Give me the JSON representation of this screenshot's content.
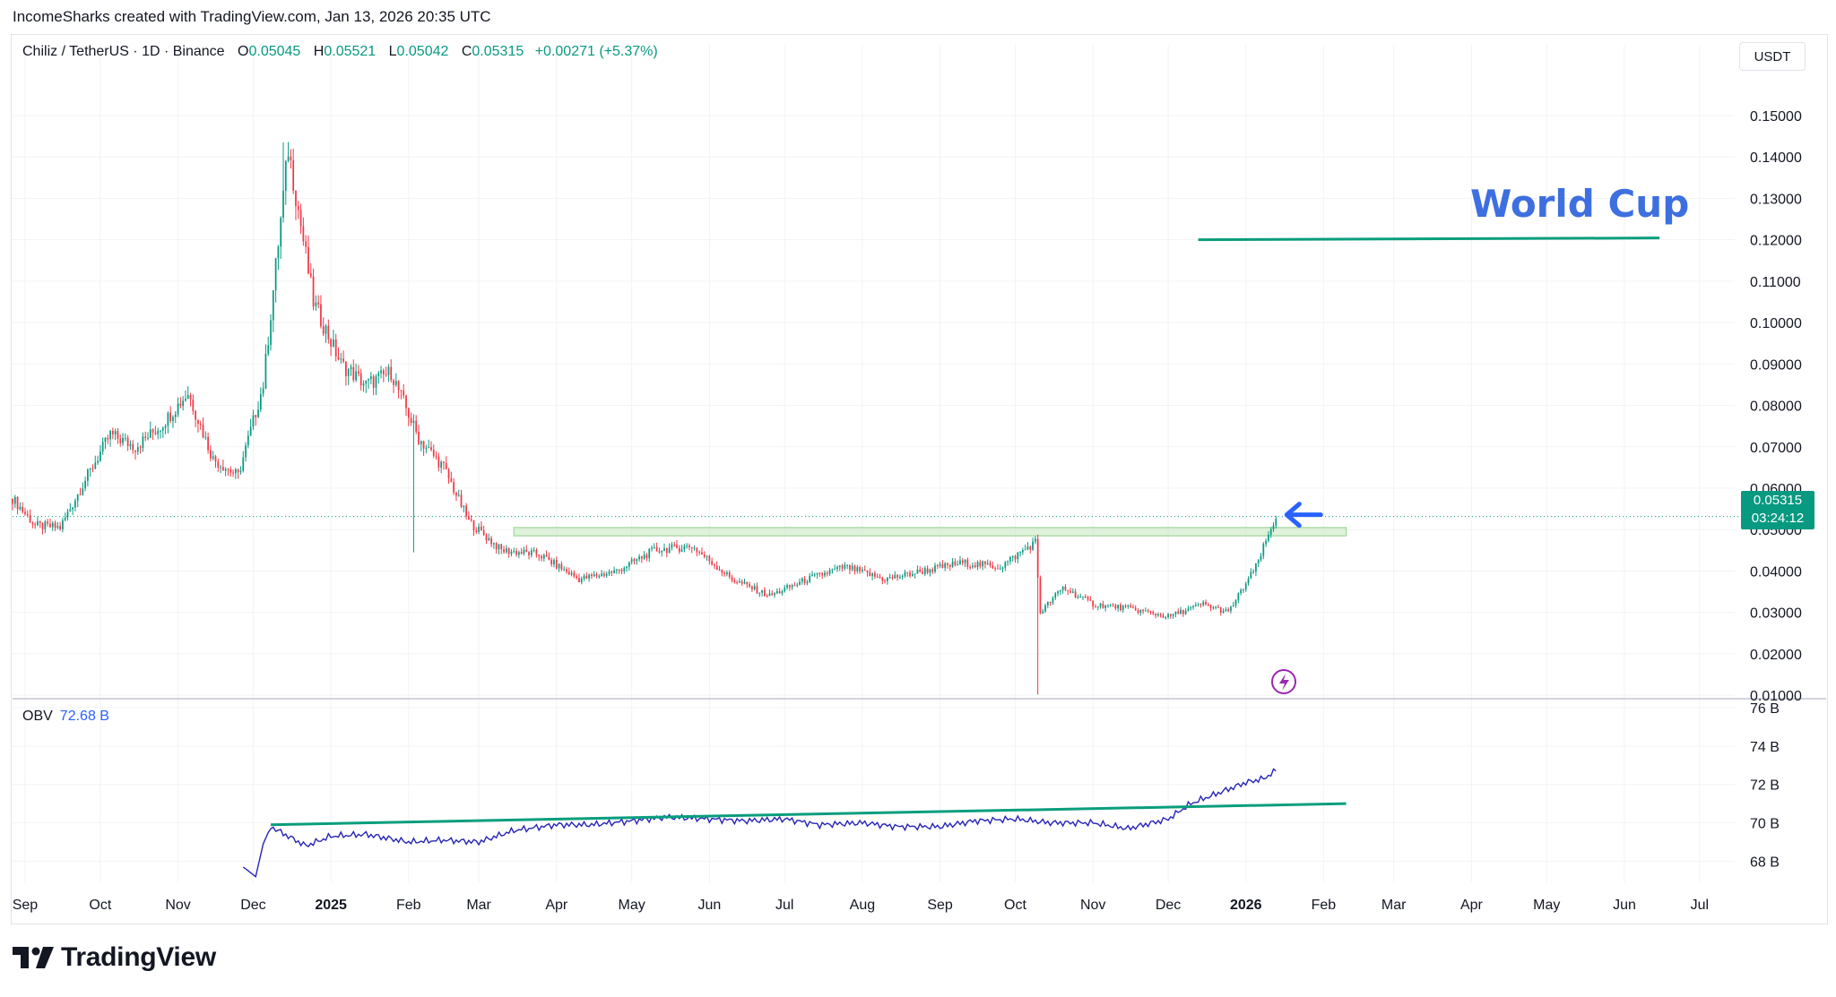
{
  "header": {
    "credit": "IncomeSharks created with TradingView.com, Jan 13, 2026 20:35 UTC"
  },
  "legend": {
    "symbol": "Chiliz / TetherUS · 1D · Binance",
    "open_label": "O",
    "open": "0.05045",
    "high_label": "H",
    "high": "0.05521",
    "low_label": "L",
    "low": "0.05042",
    "close_label": "C",
    "close": "0.05315",
    "change": "+0.00271 (+5.37%)"
  },
  "currency": "USDT",
  "price_tag": {
    "price": "0.05315",
    "countdown": "03:24:12"
  },
  "annotation": {
    "world_cup": "World Cup"
  },
  "obv_legend": {
    "label": "OBV",
    "value": "72.68 B"
  },
  "footer": {
    "brand": "TradingView"
  },
  "colors": {
    "up": "#089981",
    "down": "#f23645",
    "obv_line": "#2724b5",
    "trend_line": "#099e7d",
    "zone": "#b9e3b0",
    "arrow": "#2962ff",
    "grid": "#f2f3f5"
  },
  "chart_data": [
    {
      "type": "candlestick",
      "title": "",
      "y_axis_ticks": [
        "0.01000",
        "0.02000",
        "0.03000",
        "0.04000",
        "0.05000",
        "0.06000",
        "0.07000",
        "0.08000",
        "0.09000",
        "0.10000",
        "0.11000",
        "0.12000",
        "0.13000",
        "0.14000",
        "0.15000"
      ],
      "ylim": [
        0.007,
        0.158
      ],
      "x_axis_labels": [
        "Sep",
        "Oct",
        "Nov",
        "Dec",
        "2025",
        "Feb",
        "Mar",
        "Apr",
        "May",
        "Jun",
        "Jul",
        "Aug",
        "Sep",
        "Oct",
        "Nov",
        "Dec",
        "2026",
        "Feb",
        "Mar",
        "Apr",
        "May",
        "Jun",
        "Jul"
      ],
      "x_range": [
        "2024-08-27",
        "2026-07-15"
      ],
      "grid": true,
      "current_price": 0.05315,
      "series": [
        {
          "x": [
            "2024-08-27",
            "2024-09-05",
            "2024-09-15",
            "2024-09-25",
            "2024-10-05",
            "2024-10-15",
            "2024-10-25",
            "2024-11-05",
            "2024-11-15",
            "2024-11-25",
            "2024-12-05",
            "2024-12-15",
            "2024-12-25",
            "2025-01-05",
            "2025-01-15",
            "2025-01-25",
            "2025-02-05",
            "2025-02-15",
            "2025-02-25",
            "2025-03-10",
            "2025-03-25",
            "2025-04-10",
            "2025-04-25",
            "2025-05-10",
            "2025-05-25",
            "2025-06-10",
            "2025-06-25",
            "2025-07-10",
            "2025-07-25",
            "2025-08-10",
            "2025-08-25",
            "2025-09-10",
            "2025-09-25",
            "2025-10-09",
            "2025-10-11",
            "2025-10-20",
            "2025-11-01",
            "2025-11-15",
            "2025-12-01",
            "2025-12-15",
            "2025-12-25",
            "2026-01-05",
            "2026-01-13"
          ],
          "close": [
            0.0575,
            0.051,
            0.0505,
            0.062,
            0.073,
            0.07,
            0.075,
            0.083,
            0.067,
            0.063,
            0.085,
            0.142,
            0.105,
            0.09,
            0.085,
            0.088,
            0.072,
            0.065,
            0.052,
            0.045,
            0.044,
            0.038,
            0.04,
            0.045,
            0.046,
            0.038,
            0.034,
            0.038,
            0.041,
            0.038,
            0.04,
            0.042,
            0.041,
            0.047,
            0.03,
            0.036,
            0.032,
            0.031,
            0.029,
            0.032,
            0.03,
            0.041,
            0.05315
          ]
        }
      ],
      "levels": [
        {
          "label": "World Cup",
          "value": 0.12,
          "from": "2025-12-13",
          "to": "2026-06-15"
        }
      ],
      "zones": [
        {
          "from": "2025-03-15",
          "to": "2026-02-10",
          "low": 0.0485,
          "high": 0.0505
        }
      ]
    },
    {
      "type": "line",
      "title": "",
      "name": "OBV",
      "y_axis_ticks": [
        "68 B",
        "70 B",
        "72 B",
        "74 B",
        "76 B"
      ],
      "ylim": [
        66.9,
        76.0
      ],
      "series": [
        {
          "x": [
            "2024-11-27",
            "2024-12-02",
            "2024-12-05",
            "2024-12-08",
            "2024-12-15",
            "2024-12-22",
            "2025-01-01",
            "2025-01-15",
            "2025-02-01",
            "2025-02-15",
            "2025-03-01",
            "2025-03-15",
            "2025-04-01",
            "2025-04-15",
            "2025-05-01",
            "2025-05-15",
            "2025-06-01",
            "2025-06-15",
            "2025-07-01",
            "2025-07-15",
            "2025-08-01",
            "2025-08-15",
            "2025-09-01",
            "2025-09-15",
            "2025-10-01",
            "2025-10-15",
            "2025-11-01",
            "2025-11-15",
            "2025-12-01",
            "2025-12-10",
            "2025-12-20",
            "2026-01-01",
            "2026-01-08",
            "2026-01-13"
          ],
          "values": [
            67.7,
            67.2,
            68.9,
            69.8,
            69.3,
            68.8,
            69.3,
            69.4,
            69.0,
            69.1,
            69.0,
            69.6,
            69.9,
            69.9,
            70.1,
            70.3,
            70.2,
            70.1,
            70.2,
            69.9,
            70.0,
            69.8,
            69.8,
            70.1,
            70.2,
            70.0,
            70.0,
            69.7,
            70.2,
            71.0,
            71.5,
            72.1,
            72.3,
            72.7
          ]
        }
      ],
      "trendline": {
        "from_x": "2024-12-08",
        "from_y": 69.9,
        "to_x": "2026-02-10",
        "to_y": 71.0
      }
    }
  ]
}
